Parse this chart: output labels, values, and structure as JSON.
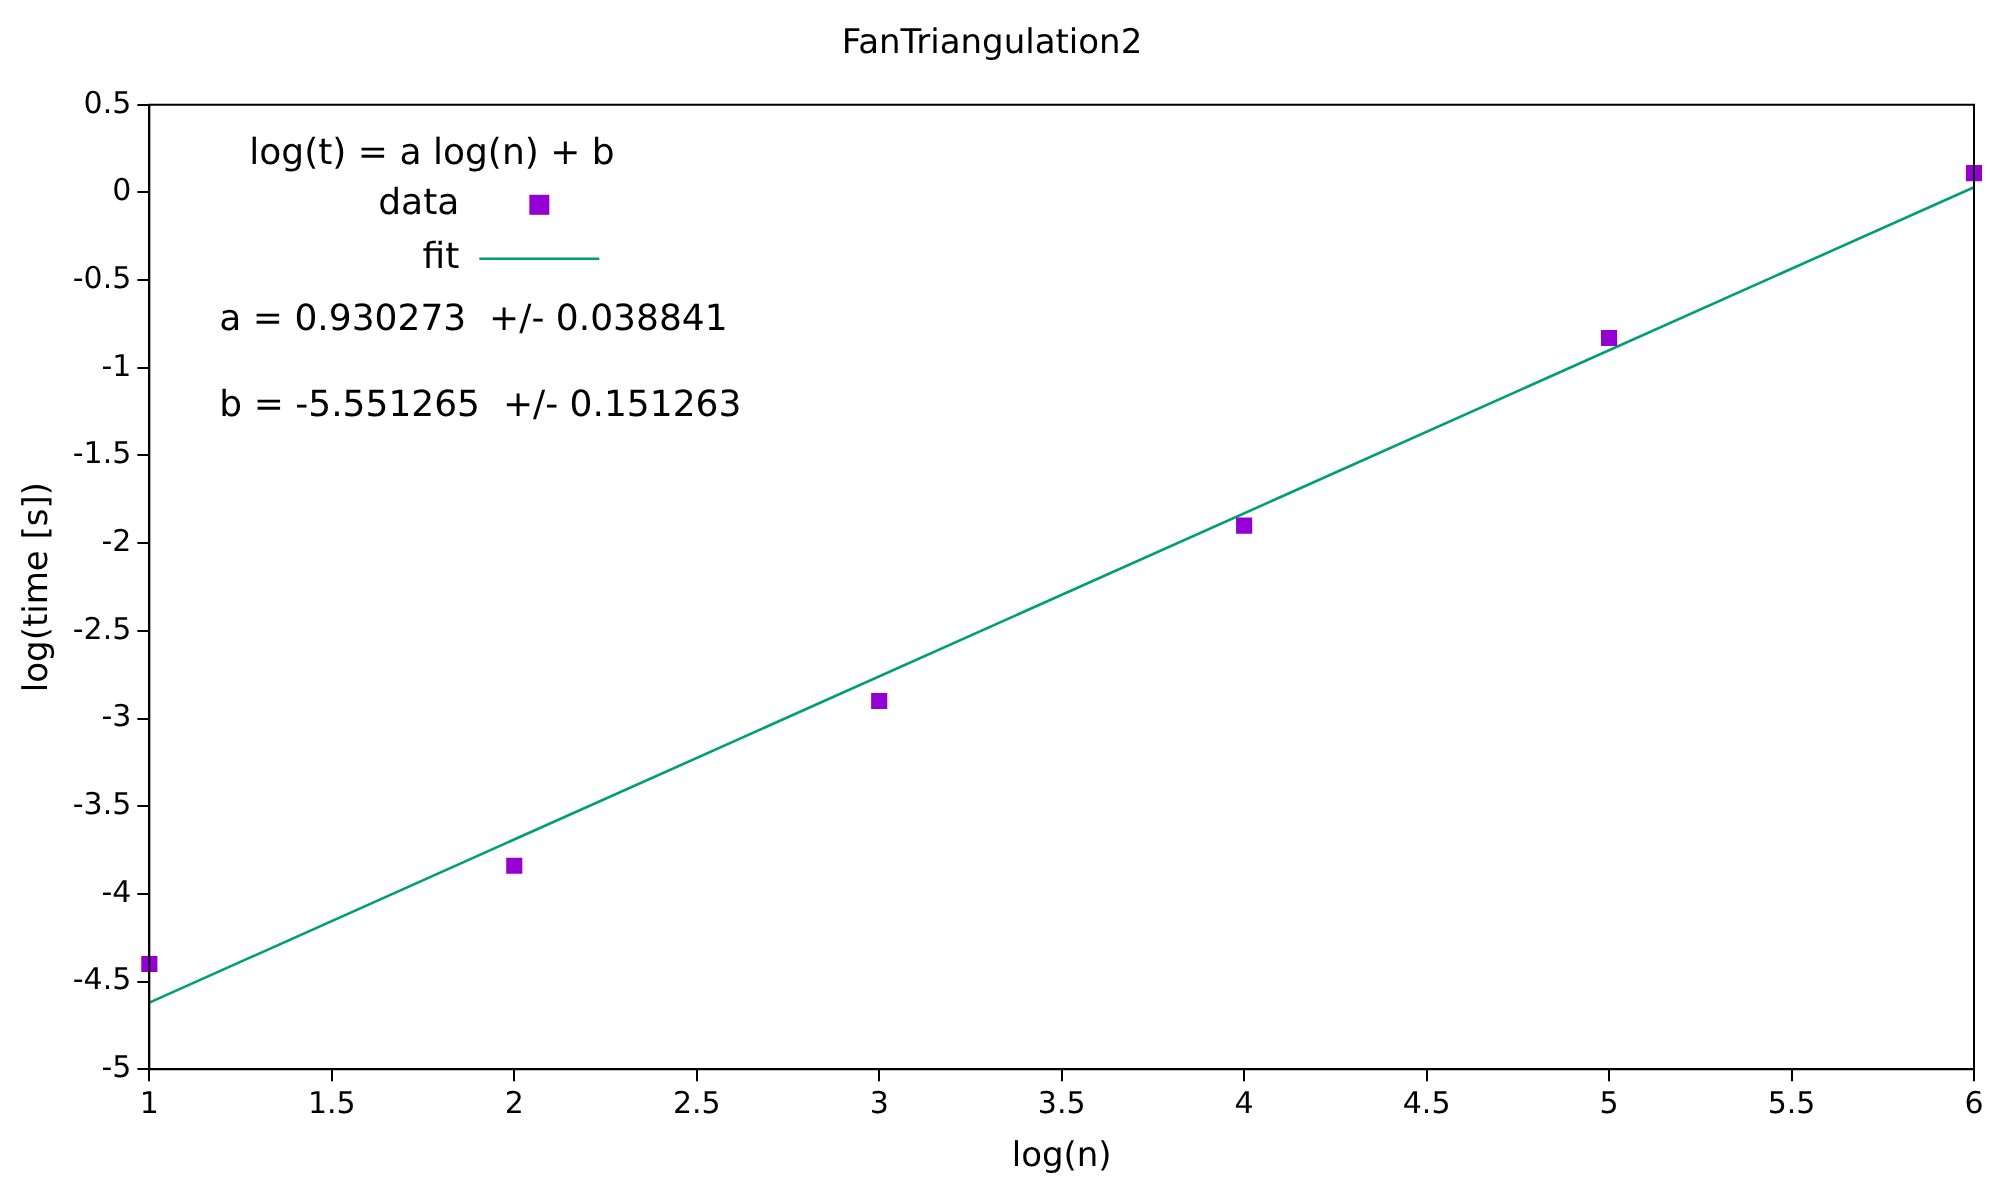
{
  "chart_data": {
    "type": "scatter",
    "title": "FanTriangulation2",
    "xlabel": "log(n)",
    "ylabel": "log(time [s])",
    "legend_title": "log(t) = a log(n) + b",
    "series": [
      {
        "name": "data",
        "type": "scatter",
        "color": "#9400d3",
        "marker": "square",
        "x": [
          1,
          2,
          3,
          4,
          5,
          6
        ],
        "values": [
          -4.4,
          -3.84,
          -2.9,
          -1.9,
          -0.83,
          0.11
        ]
      },
      {
        "name": "fit",
        "type": "line",
        "color": "#009e73",
        "marker": "none",
        "line_style": "solid",
        "x": [
          1,
          6
        ],
        "values": [
          -4.62,
          0.03
        ]
      }
    ],
    "annotations": [
      "a = 0.930273  +/- 0.038841",
      "b = -5.551265  +/- 0.151263"
    ],
    "xlim": [
      1,
      6
    ],
    "xticks": [
      1,
      1.5,
      2,
      2.5,
      3,
      3.5,
      4,
      4.5,
      5,
      5.5,
      6
    ],
    "ylim": [
      -5,
      0.5
    ],
    "yticks": [
      -5,
      -4.5,
      -4,
      -3.5,
      -3,
      -2.5,
      -2,
      -1.5,
      -1,
      -0.5,
      0,
      0.5
    ],
    "grid": false,
    "legend": "top left"
  }
}
